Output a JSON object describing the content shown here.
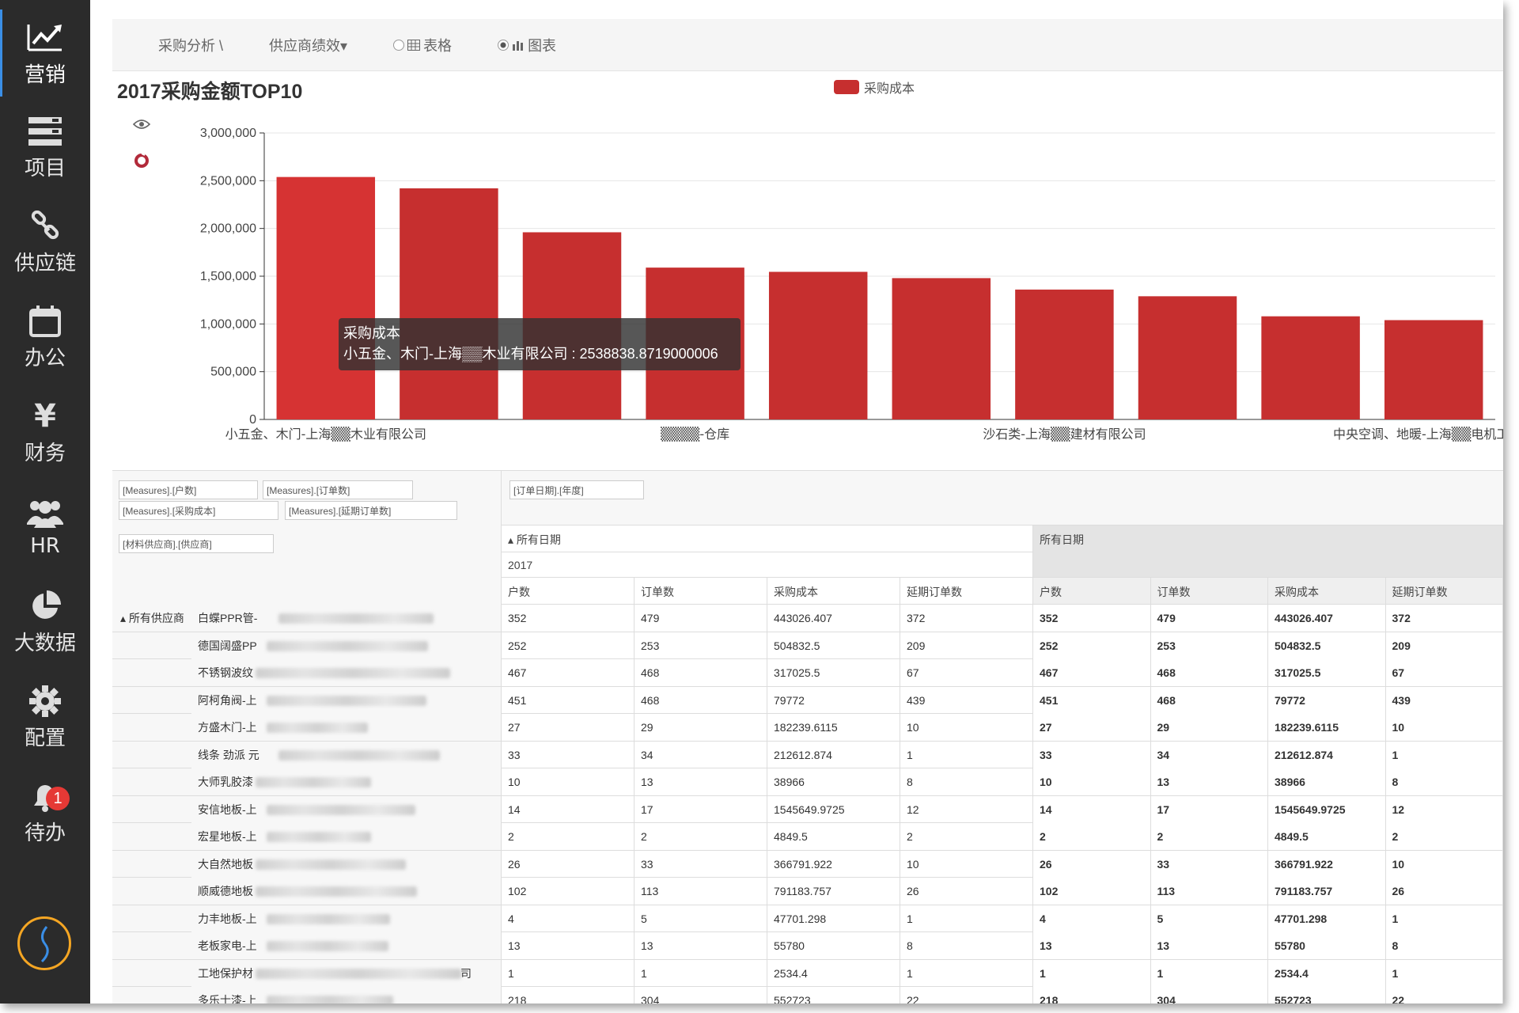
{
  "sidebar": {
    "items": [
      {
        "label": "营销",
        "icon": "trend-chart-icon",
        "active": true
      },
      {
        "label": "项目",
        "icon": "list-icon",
        "active": false
      },
      {
        "label": "供应链",
        "icon": "link-icon",
        "active": false
      },
      {
        "label": "办公",
        "icon": "calendar-icon",
        "active": false
      },
      {
        "label": "财务",
        "icon": "yen-icon",
        "active": false
      },
      {
        "label": "HR",
        "icon": "people-icon",
        "active": false
      },
      {
        "label": "大数据",
        "icon": "pie-chart-icon",
        "active": false
      },
      {
        "label": "配置",
        "icon": "gear-icon",
        "active": false
      },
      {
        "label": "待办",
        "icon": "bell-icon",
        "active": false,
        "badge": "1"
      }
    ],
    "logo_icon": "app-logo-icon"
  },
  "toolbar": {
    "breadcrumb": "采购分析 \\",
    "dropdown_label": "供应商绩效▾",
    "view_table_label": "表格",
    "view_chart_label": "图表",
    "selected_view": "图表"
  },
  "colors": {
    "bar": "#c62f2f",
    "bar_first": "#d63333",
    "sidebar_bg": "#2b2b2b",
    "badge": "#e53935"
  },
  "chart_data": {
    "type": "bar",
    "title": "2017采购金额TOP10",
    "legend": [
      "采购成本"
    ],
    "legend_position": "top-center",
    "categories": [
      "小五金、木门-上海▒▒木业有限公司",
      "",
      "",
      "▒▒▒▒-仓库",
      "",
      "",
      "沙石类-上海▒▒建材有限公司",
      "",
      "",
      "中央空调、地暖-上海▒▒电机工程有"
    ],
    "series": [
      {
        "name": "采购成本",
        "values": [
          2538838.87,
          2420000,
          1960000,
          1590000,
          1545649.97,
          1480000,
          1360000,
          1290000,
          1080000,
          1040000
        ]
      }
    ],
    "ylim": [
      0,
      3000000
    ],
    "yticks": [
      "0",
      "500,000",
      "1,000,000",
      "1,500,000",
      "2,000,000",
      "2,500,000",
      "3,000,000"
    ],
    "grid": true,
    "tooltip": {
      "series": "采购成本",
      "text": "小五金、木门-上海▒▒木业有限公司 : 2538838.8719000006"
    }
  },
  "pivot": {
    "measure_chips": [
      "[Measures].[户数]",
      "[Measures].[订单数]",
      "[Measures].[采购成本]",
      "[Measures].[延期订单数]"
    ],
    "column_chip": "[订单日期].[年度]",
    "row_chip": "[材料供应商].[供应商]",
    "all_dates_label": "▴ 所有日期",
    "all_dates_total_label": "所有日期",
    "year_label": "2017",
    "row_group_label": "▴ 所有供应商",
    "columns": [
      "户数",
      "订单数",
      "采购成本",
      "延期订单数"
    ],
    "rows": [
      {
        "name": "白蝶PPR管-",
        "v": [
          "352",
          "479",
          "443026.407",
          "372"
        ]
      },
      {
        "name": "德国阔盛PP",
        "v": [
          "252",
          "253",
          "504832.5",
          "209"
        ]
      },
      {
        "name": "不锈钢波纹",
        "v": [
          "467",
          "468",
          "317025.5",
          "67"
        ]
      },
      {
        "name": "阿柯角阀-上",
        "v": [
          "451",
          "468",
          "79772",
          "439"
        ]
      },
      {
        "name": "方盛木门-上",
        "v": [
          "27",
          "29",
          "182239.6115",
          "10"
        ]
      },
      {
        "name": "线条 劲派 元",
        "v": [
          "33",
          "34",
          "212612.874",
          "1"
        ]
      },
      {
        "name": "大师乳胶漆",
        "v": [
          "10",
          "13",
          "38966",
          "8"
        ]
      },
      {
        "name": "安信地板-上",
        "v": [
          "14",
          "17",
          "1545649.9725",
          "12"
        ]
      },
      {
        "name": "宏星地板-上",
        "v": [
          "2",
          "2",
          "4849.5",
          "2"
        ]
      },
      {
        "name": "大自然地板",
        "v": [
          "26",
          "33",
          "366791.922",
          "10"
        ]
      },
      {
        "name": "顺威德地板",
        "v": [
          "102",
          "113",
          "791183.757",
          "26"
        ]
      },
      {
        "name": "力丰地板-上",
        "v": [
          "4",
          "5",
          "47701.298",
          "1"
        ]
      },
      {
        "name": "老板家电-上",
        "v": [
          "13",
          "13",
          "55780",
          "8"
        ]
      },
      {
        "name": "工地保护材",
        "suffix": "司",
        "v": [
          "1",
          "1",
          "2534.4",
          "1"
        ]
      },
      {
        "name": "多乐士漆-上",
        "v": [
          "218",
          "304",
          "552723",
          "22"
        ]
      }
    ]
  }
}
